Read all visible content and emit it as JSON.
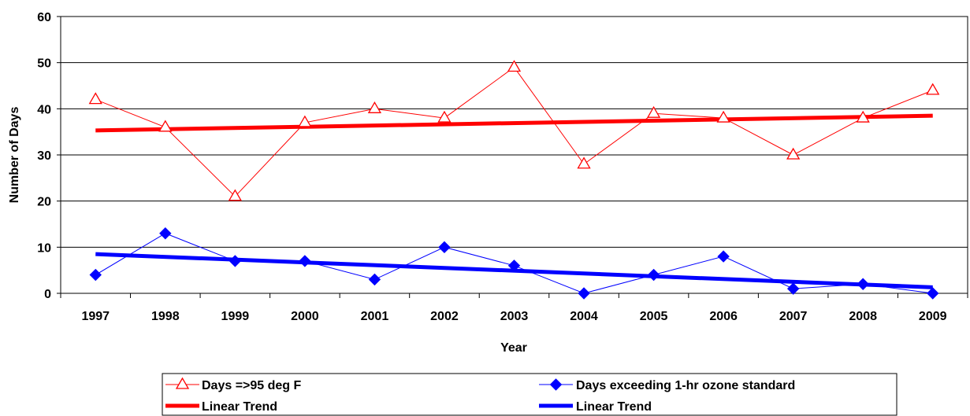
{
  "chart_data": {
    "type": "line",
    "title": "",
    "xlabel": "Year",
    "ylabel": "Number of Days",
    "ylim": [
      0,
      60
    ],
    "yticks": [
      0,
      10,
      20,
      30,
      40,
      50,
      60
    ],
    "grid": "horizontal",
    "legend_position": "bottom",
    "categories": [
      "1997",
      "1998",
      "1999",
      "2000",
      "2001",
      "2002",
      "2003",
      "2004",
      "2005",
      "2006",
      "2007",
      "2008",
      "2009"
    ],
    "series": [
      {
        "name": "Days =>95 deg F",
        "color": "#ff0000",
        "marker": "triangle-open",
        "values": [
          42,
          36,
          21,
          37,
          40,
          38,
          49,
          28,
          39,
          38,
          30,
          38,
          44
        ]
      },
      {
        "name": "Days exceeding 1-hr ozone standard",
        "color": "#0000ff",
        "marker": "diamond-filled",
        "values": [
          4,
          13,
          7,
          7,
          3,
          10,
          6,
          0,
          4,
          8,
          1,
          2,
          0
        ]
      }
    ],
    "trendlines": [
      {
        "name": "Linear Trend",
        "color": "#ff0000",
        "start": 35.3,
        "end": 38.5
      },
      {
        "name": "Linear Trend",
        "color": "#0000ff",
        "start": 8.5,
        "end": 1.3
      }
    ]
  }
}
